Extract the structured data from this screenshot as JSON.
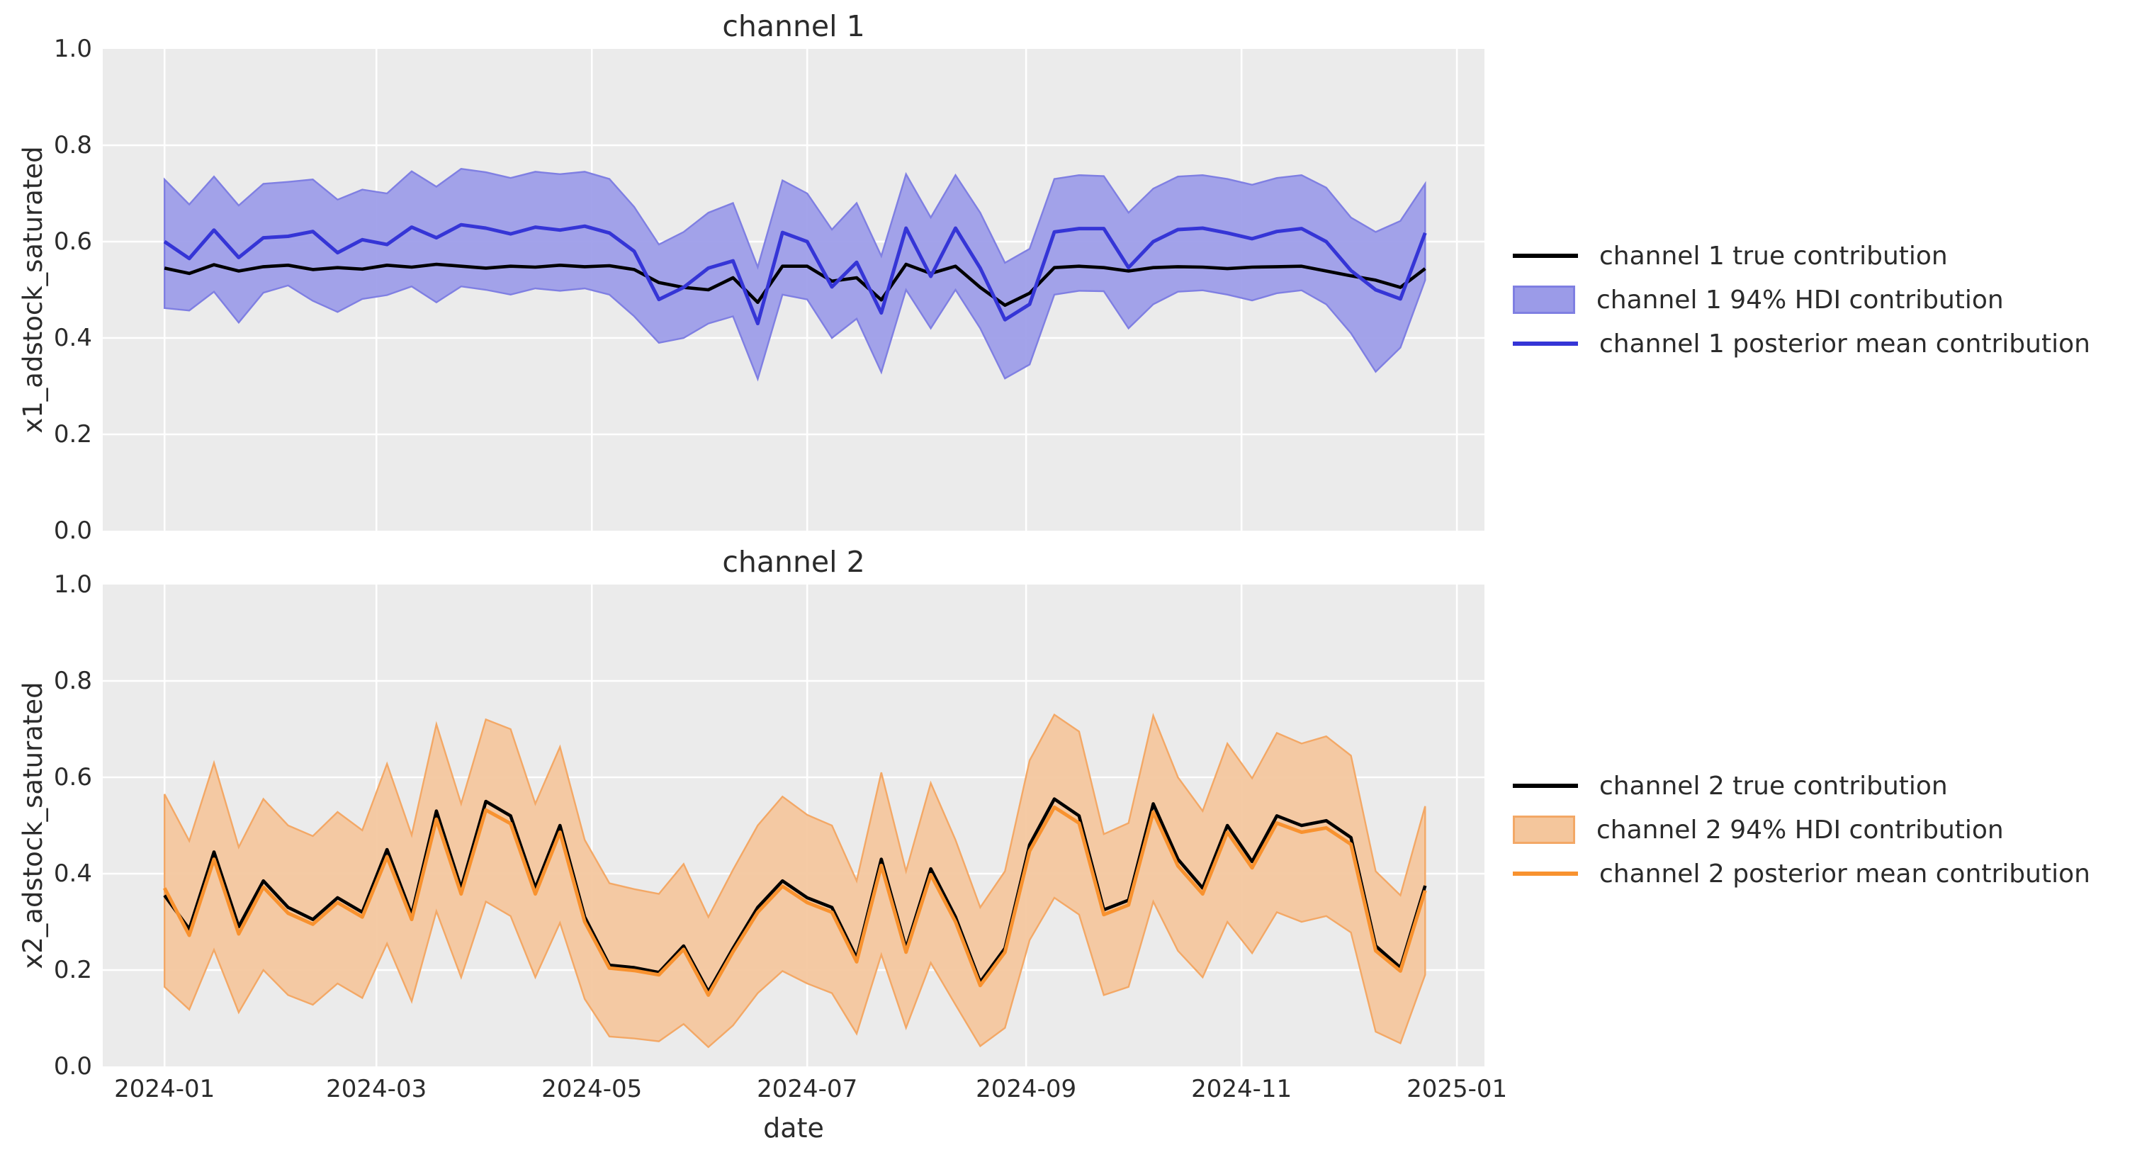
{
  "figure": {
    "background": "#ffffff"
  },
  "styles": {
    "axes_background": "#ebebeb",
    "gridline_color": "#ffffff",
    "text_color": "#2b2b2b",
    "true_line_color": "#000000"
  },
  "xlabel": "date",
  "x_ticks": [
    {
      "label": "2024-01",
      "week": 0
    },
    {
      "label": "2024-03",
      "week": 8.571
    },
    {
      "label": "2024-05",
      "week": 17.286
    },
    {
      "label": "2024-07",
      "week": 26.0
    },
    {
      "label": "2024-09",
      "week": 34.857
    },
    {
      "label": "2024-11",
      "week": 43.571
    },
    {
      "label": "2025-01",
      "week": 52.286
    }
  ],
  "y_ticks": [
    {
      "label": "0.0",
      "value": 0.0
    },
    {
      "label": "0.2",
      "value": 0.2
    },
    {
      "label": "0.4",
      "value": 0.4
    },
    {
      "label": "0.6",
      "value": 0.6
    },
    {
      "label": "0.8",
      "value": 0.8
    },
    {
      "label": "1.0",
      "value": 1.0
    }
  ],
  "chart_data": [
    {
      "type": "line",
      "title": "channel 1",
      "ylabel": "x1_adstock_saturated",
      "xlabel": "date",
      "ylim": [
        0.0,
        1.0
      ],
      "grid": true,
      "legend_position": "center right, outside axes",
      "line_color": "#3535d6",
      "fill_color": "#9b9be8",
      "fill_edge_color": "#7f7fe2",
      "legend": [
        "channel 1 true contribution",
        "channel 1 94% HDI contribution",
        "channel 1 posterior mean contribution"
      ],
      "dates": [
        "2024-01-01",
        "2024-01-08",
        "2024-01-15",
        "2024-01-22",
        "2024-01-29",
        "2024-02-05",
        "2024-02-12",
        "2024-02-19",
        "2024-02-26",
        "2024-03-04",
        "2024-03-11",
        "2024-03-18",
        "2024-03-25",
        "2024-04-01",
        "2024-04-08",
        "2024-04-15",
        "2024-04-22",
        "2024-04-29",
        "2024-05-06",
        "2024-05-13",
        "2024-05-20",
        "2024-05-27",
        "2024-06-03",
        "2024-06-10",
        "2024-06-17",
        "2024-06-24",
        "2024-07-01",
        "2024-07-08",
        "2024-07-15",
        "2024-07-22",
        "2024-07-29",
        "2024-08-05",
        "2024-08-12",
        "2024-08-19",
        "2024-08-26",
        "2024-09-02",
        "2024-09-09",
        "2024-09-16",
        "2024-09-23",
        "2024-09-30",
        "2024-10-07",
        "2024-10-14",
        "2024-10-21",
        "2024-10-28",
        "2024-11-04",
        "2024-11-11",
        "2024-11-18",
        "2024-11-25",
        "2024-12-02",
        "2024-12-09",
        "2024-12-16",
        "2024-12-23"
      ],
      "true_contribution": [
        0.545,
        0.534,
        0.552,
        0.539,
        0.548,
        0.551,
        0.542,
        0.546,
        0.543,
        0.551,
        0.547,
        0.553,
        0.549,
        0.545,
        0.549,
        0.547,
        0.551,
        0.548,
        0.55,
        0.542,
        0.515,
        0.505,
        0.5,
        0.525,
        0.474,
        0.549,
        0.549,
        0.518,
        0.525,
        0.479,
        0.553,
        0.534,
        0.549,
        0.505,
        0.468,
        0.493,
        0.546,
        0.549,
        0.546,
        0.539,
        0.546,
        0.548,
        0.547,
        0.544,
        0.547,
        0.548,
        0.549,
        0.539,
        0.529,
        0.52,
        0.505,
        0.544
      ],
      "posterior_mean": [
        0.6,
        0.565,
        0.624,
        0.567,
        0.608,
        0.611,
        0.621,
        0.577,
        0.604,
        0.594,
        0.63,
        0.608,
        0.635,
        0.628,
        0.616,
        0.63,
        0.624,
        0.632,
        0.618,
        0.58,
        0.48,
        0.505,
        0.545,
        0.56,
        0.43,
        0.619,
        0.6,
        0.506,
        0.557,
        0.452,
        0.628,
        0.528,
        0.628,
        0.545,
        0.438,
        0.47,
        0.62,
        0.627,
        0.627,
        0.546,
        0.6,
        0.625,
        0.628,
        0.618,
        0.606,
        0.621,
        0.627,
        0.6,
        0.54,
        0.5,
        0.481,
        0.618
      ],
      "hdi_lower": [
        0.462,
        0.457,
        0.496,
        0.432,
        0.494,
        0.509,
        0.477,
        0.454,
        0.481,
        0.489,
        0.507,
        0.474,
        0.507,
        0.5,
        0.49,
        0.503,
        0.498,
        0.503,
        0.49,
        0.445,
        0.39,
        0.4,
        0.43,
        0.445,
        0.315,
        0.49,
        0.48,
        0.4,
        0.44,
        0.329,
        0.5,
        0.42,
        0.5,
        0.42,
        0.316,
        0.345,
        0.49,
        0.498,
        0.497,
        0.42,
        0.47,
        0.496,
        0.499,
        0.49,
        0.478,
        0.493,
        0.499,
        0.47,
        0.41,
        0.33,
        0.38,
        0.52
      ],
      "hdi_upper": [
        0.729,
        0.677,
        0.735,
        0.675,
        0.72,
        0.724,
        0.729,
        0.687,
        0.708,
        0.7,
        0.746,
        0.714,
        0.751,
        0.744,
        0.732,
        0.745,
        0.74,
        0.745,
        0.73,
        0.672,
        0.594,
        0.62,
        0.66,
        0.68,
        0.547,
        0.727,
        0.7,
        0.625,
        0.68,
        0.57,
        0.74,
        0.65,
        0.738,
        0.66,
        0.556,
        0.585,
        0.73,
        0.738,
        0.736,
        0.66,
        0.71,
        0.735,
        0.738,
        0.73,
        0.718,
        0.732,
        0.738,
        0.712,
        0.65,
        0.62,
        0.643,
        0.72
      ]
    },
    {
      "type": "line",
      "title": "channel 2",
      "ylabel": "x2_adstock_saturated",
      "xlabel": "date",
      "ylim": [
        0.0,
        1.0
      ],
      "grid": true,
      "legend_position": "center right, outside axes",
      "line_color": "#f8922f",
      "fill_color": "#f4c69c",
      "fill_edge_color": "#f3a866",
      "legend": [
        "channel 2 true contribution",
        "channel 2 94% HDI contribution",
        "channel 2 posterior mean contribution"
      ],
      "dates": [
        "2024-01-01",
        "2024-01-08",
        "2024-01-15",
        "2024-01-22",
        "2024-01-29",
        "2024-02-05",
        "2024-02-12",
        "2024-02-19",
        "2024-02-26",
        "2024-03-04",
        "2024-03-11",
        "2024-03-18",
        "2024-03-25",
        "2024-04-01",
        "2024-04-08",
        "2024-04-15",
        "2024-04-22",
        "2024-04-29",
        "2024-05-06",
        "2024-05-13",
        "2024-05-20",
        "2024-05-27",
        "2024-06-03",
        "2024-06-10",
        "2024-06-17",
        "2024-06-24",
        "2024-07-01",
        "2024-07-08",
        "2024-07-15",
        "2024-07-22",
        "2024-07-29",
        "2024-08-05",
        "2024-08-12",
        "2024-08-19",
        "2024-08-26",
        "2024-09-02",
        "2024-09-09",
        "2024-09-16",
        "2024-09-23",
        "2024-09-30",
        "2024-10-07",
        "2024-10-14",
        "2024-10-21",
        "2024-10-28",
        "2024-11-04",
        "2024-11-11",
        "2024-11-18",
        "2024-11-25",
        "2024-12-02",
        "2024-12-09",
        "2024-12-16",
        "2024-12-23"
      ],
      "true_contribution": [
        0.355,
        0.285,
        0.445,
        0.29,
        0.385,
        0.33,
        0.305,
        0.35,
        0.32,
        0.45,
        0.315,
        0.53,
        0.37,
        0.55,
        0.52,
        0.37,
        0.5,
        0.31,
        0.21,
        0.205,
        0.195,
        0.25,
        0.155,
        0.245,
        0.33,
        0.385,
        0.35,
        0.33,
        0.225,
        0.43,
        0.245,
        0.41,
        0.31,
        0.175,
        0.245,
        0.46,
        0.555,
        0.52,
        0.325,
        0.345,
        0.545,
        0.43,
        0.37,
        0.5,
        0.425,
        0.52,
        0.5,
        0.51,
        0.475,
        0.25,
        0.205,
        0.375
      ],
      "posterior_mean": [
        0.37,
        0.272,
        0.43,
        0.275,
        0.372,
        0.318,
        0.295,
        0.34,
        0.31,
        0.435,
        0.305,
        0.513,
        0.358,
        0.532,
        0.504,
        0.358,
        0.486,
        0.3,
        0.204,
        0.199,
        0.19,
        0.243,
        0.148,
        0.238,
        0.32,
        0.374,
        0.34,
        0.32,
        0.217,
        0.417,
        0.237,
        0.398,
        0.3,
        0.168,
        0.237,
        0.447,
        0.538,
        0.505,
        0.315,
        0.335,
        0.528,
        0.416,
        0.358,
        0.486,
        0.412,
        0.505,
        0.486,
        0.495,
        0.461,
        0.24,
        0.198,
        0.365
      ],
      "hdi_lower": [
        0.165,
        0.118,
        0.242,
        0.112,
        0.2,
        0.148,
        0.128,
        0.172,
        0.142,
        0.255,
        0.135,
        0.322,
        0.185,
        0.342,
        0.312,
        0.185,
        0.298,
        0.14,
        0.062,
        0.058,
        0.052,
        0.088,
        0.04,
        0.085,
        0.152,
        0.198,
        0.172,
        0.152,
        0.068,
        0.232,
        0.08,
        0.215,
        0.128,
        0.042,
        0.08,
        0.262,
        0.35,
        0.315,
        0.148,
        0.165,
        0.342,
        0.24,
        0.185,
        0.3,
        0.235,
        0.32,
        0.3,
        0.312,
        0.278,
        0.072,
        0.048,
        0.19
      ],
      "hdi_upper": [
        0.565,
        0.468,
        0.63,
        0.455,
        0.555,
        0.5,
        0.478,
        0.528,
        0.49,
        0.628,
        0.48,
        0.71,
        0.545,
        0.72,
        0.7,
        0.545,
        0.663,
        0.47,
        0.38,
        0.368,
        0.358,
        0.42,
        0.31,
        0.408,
        0.5,
        0.56,
        0.522,
        0.5,
        0.385,
        0.61,
        0.405,
        0.588,
        0.47,
        0.33,
        0.405,
        0.635,
        0.73,
        0.695,
        0.482,
        0.505,
        0.728,
        0.6,
        0.53,
        0.67,
        0.598,
        0.692,
        0.67,
        0.685,
        0.645,
        0.405,
        0.355,
        0.54
      ]
    }
  ]
}
